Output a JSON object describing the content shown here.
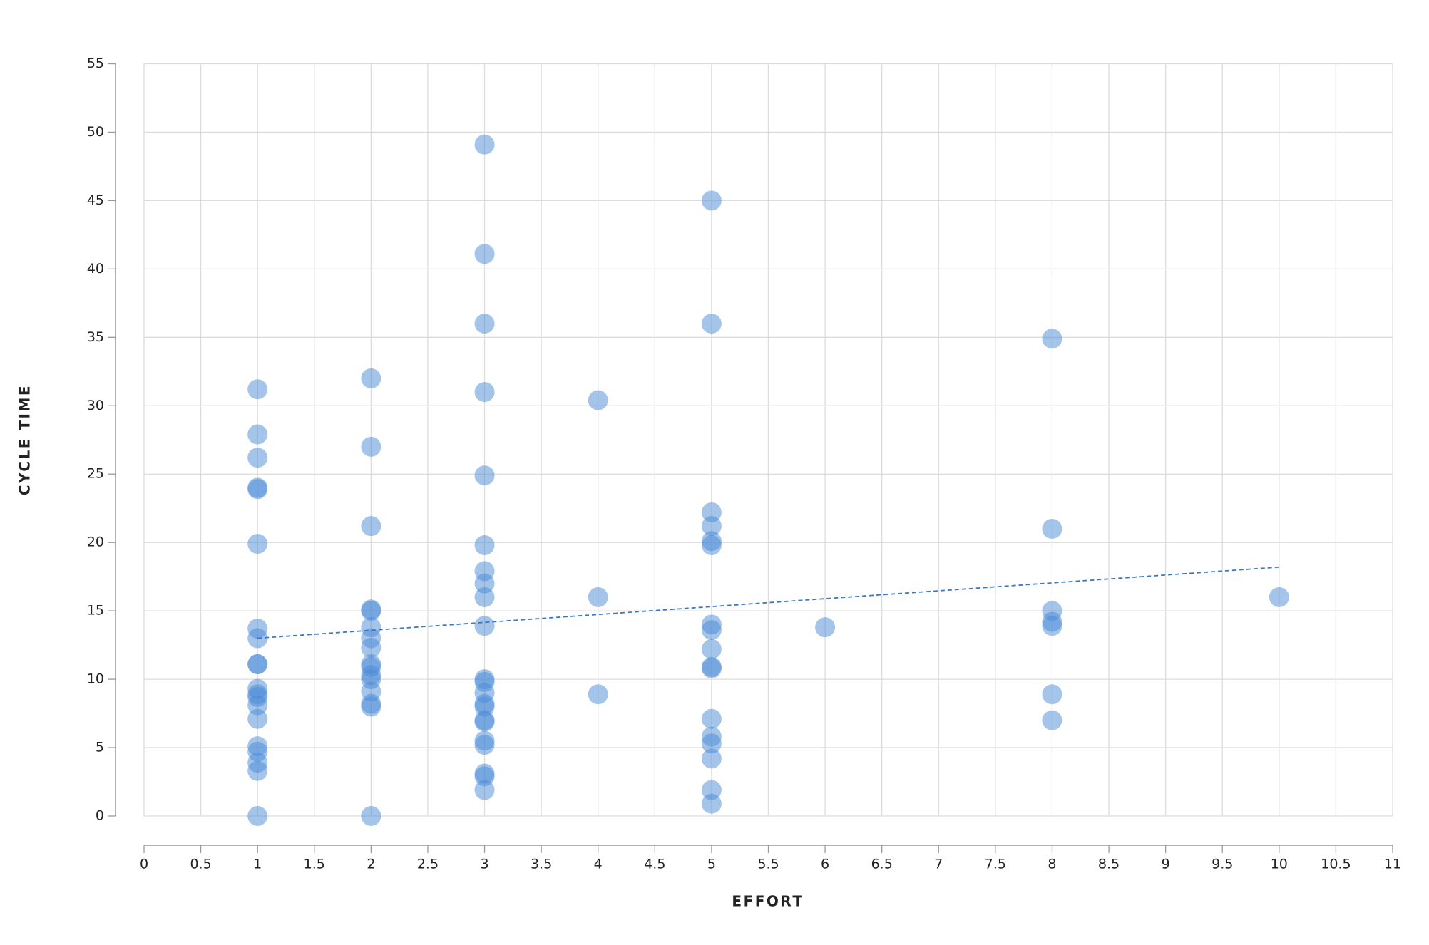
{
  "chart_data": {
    "type": "scatter",
    "x_label": "EFFORT",
    "y_label": "CYCLE TIME",
    "xlim": [
      0,
      11
    ],
    "ylim": [
      0,
      55
    ],
    "xticks": [
      0,
      0.5,
      1,
      1.5,
      2,
      2.5,
      3,
      3.5,
      4,
      4.5,
      5,
      5.5,
      6,
      6.5,
      7,
      7.5,
      8,
      8.5,
      9,
      9.5,
      10,
      10.5,
      11
    ],
    "yticks": [
      0,
      5,
      10,
      15,
      20,
      25,
      30,
      35,
      40,
      45,
      50,
      55
    ],
    "grid": true,
    "color": "#4a8ad6",
    "x": [
      1,
      1,
      1,
      1,
      1,
      1,
      1,
      1,
      1,
      1,
      1,
      1,
      1,
      1,
      1,
      1,
      1,
      1,
      1,
      1,
      2,
      2,
      2,
      2,
      2,
      2,
      2,
      2,
      2,
      2,
      2,
      2,
      2,
      2,
      2,
      2,
      3,
      3,
      3,
      3,
      3,
      3,
      3,
      3,
      3,
      3,
      3,
      3,
      3,
      3,
      3,
      3,
      3,
      3,
      3,
      3,
      3,
      3,
      4,
      4,
      4,
      5,
      5,
      5,
      5,
      5,
      5,
      5,
      5,
      5,
      5,
      5,
      5,
      5,
      5,
      5,
      5,
      5,
      6,
      8,
      8,
      8,
      8,
      8,
      8,
      8,
      10
    ],
    "values": [
      31.2,
      27.9,
      26.2,
      24.0,
      23.9,
      19.9,
      13.7,
      13.0,
      11.1,
      11.1,
      9.3,
      8.9,
      8.7,
      8.1,
      7.1,
      5.1,
      4.7,
      3.9,
      3.3,
      0,
      32.0,
      27.0,
      21.2,
      15.1,
      15.0,
      13.8,
      13.0,
      12.3,
      11.1,
      10.9,
      10.3,
      10.0,
      9.1,
      8.2,
      8.0,
      0,
      49.1,
      41.1,
      36.0,
      31.0,
      24.9,
      19.8,
      17.9,
      17.0,
      16.0,
      13.9,
      10.0,
      9.8,
      9.0,
      8.2,
      8.0,
      7.0,
      6.9,
      5.5,
      5.2,
      3.1,
      2.9,
      1.9,
      30.4,
      16.0,
      8.9,
      45.0,
      36.0,
      22.2,
      21.2,
      20.1,
      19.8,
      14.0,
      13.6,
      12.2,
      10.9,
      10.8,
      7.1,
      5.8,
      5.3,
      4.2,
      1.9,
      0.9,
      13.8,
      34.9,
      21.0,
      15.0,
      14.2,
      13.9,
      8.9,
      7.0,
      16.0
    ],
    "trendline": {
      "x": [
        1,
        10
      ],
      "values": [
        13.0,
        18.2
      ],
      "color": "#3a78c3"
    }
  }
}
